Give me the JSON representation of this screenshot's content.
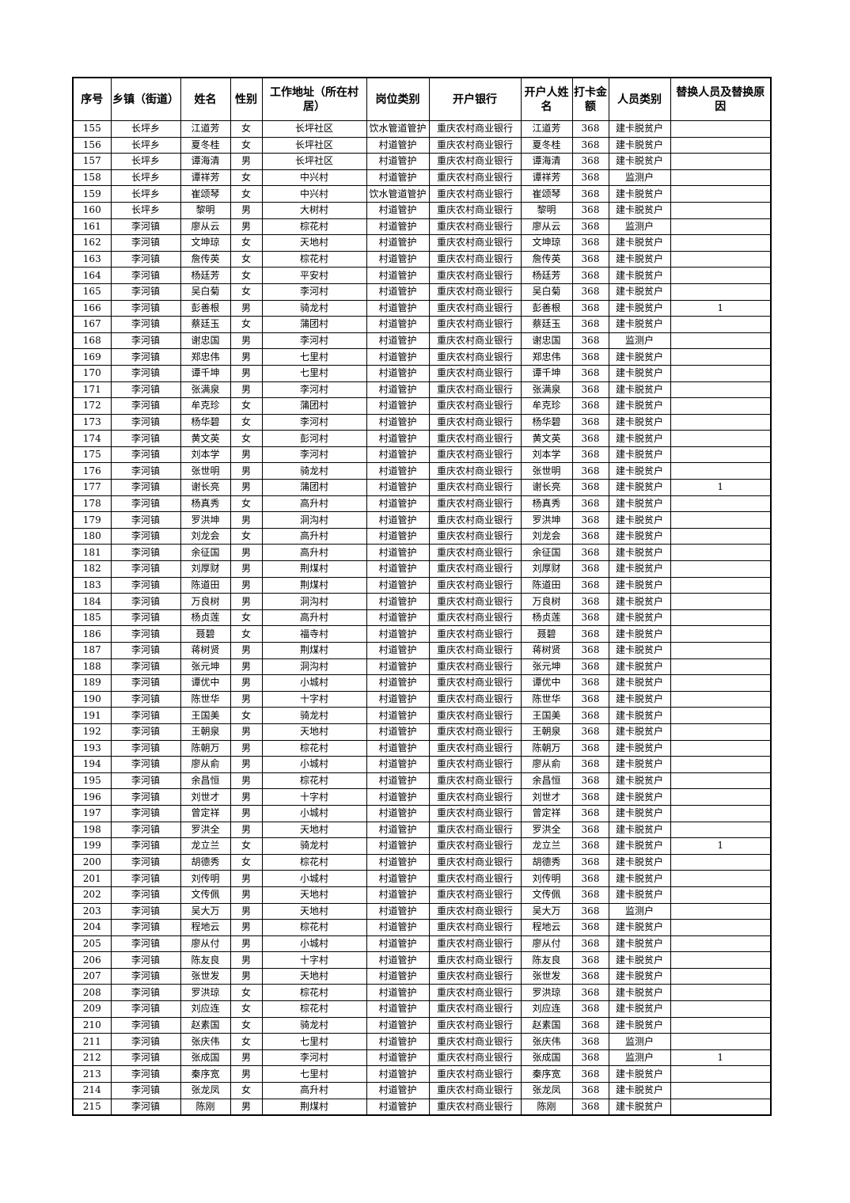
{
  "table": {
    "header": [
      "序号",
      "乡镇（街道）",
      "姓名",
      "性别",
      "工作地址（所在村居）",
      "岗位类别",
      "开户银行",
      "开户人姓名",
      "打卡金额",
      "人员类别",
      "替换人员及替换原因"
    ],
    "rows": [
      [
        155,
        "长坪乡",
        "江道芳",
        "女",
        "长坪社区",
        "饮水管道管护",
        "重庆农村商业银行",
        "江道芳",
        368,
        "建卡脱贫户"
      ],
      [
        156,
        "长坪乡",
        "夏冬桂",
        "女",
        "长坪社区",
        "村道管护",
        "重庆农村商业银行",
        "夏冬桂",
        368,
        "建卡脱贫户"
      ],
      [
        157,
        "长坪乡",
        "谭海清",
        "男",
        "长坪社区",
        "村道管护",
        "重庆农村商业银行",
        "谭海清",
        368,
        "建卡脱贫户"
      ],
      [
        158,
        "长坪乡",
        "谭祥芳",
        "女",
        "中兴村",
        "村道管护",
        "重庆农村商业银行",
        "谭祥芳",
        368,
        "监测户"
      ],
      [
        159,
        "长坪乡",
        "崔颂琴",
        "女",
        "中兴村",
        "饮水管道管护",
        "重庆农村商业银行",
        "崔颂琴",
        368,
        "建卡脱贫户"
      ],
      [
        160,
        "长坪乡",
        "黎明",
        "男",
        "大树村",
        "村道管护",
        "重庆农村商业银行",
        "黎明",
        368,
        "建卡脱贫户"
      ],
      [
        161,
        "李河镇",
        "廖从云",
        "男",
        "棕花村",
        "村道管护",
        "重庆农村商业银行",
        "廖从云",
        368,
        "监测户"
      ],
      [
        162,
        "李河镇",
        "文坤琼",
        "女",
        "天地村",
        "村道管护",
        "重庆农村商业银行",
        "文坤琼",
        368,
        "建卡脱贫户"
      ],
      [
        163,
        "李河镇",
        "詹传英",
        "女",
        "棕花村",
        "村道管护",
        "重庆农村商业银行",
        "詹传英",
        368,
        "建卡脱贫户"
      ],
      [
        164,
        "李河镇",
        "杨廷芳",
        "女",
        "平安村",
        "村道管护",
        "重庆农村商业银行",
        "杨廷芳",
        368,
        "建卡脱贫户"
      ],
      [
        165,
        "李河镇",
        "吴白菊",
        "女",
        "李河村",
        "村道管护",
        "重庆农村商业银行",
        "吴白菊",
        368,
        "建卡脱贫户"
      ],
      [
        166,
        "李河镇",
        "彭善根",
        "男",
        "骑龙村",
        "村道管护",
        "重庆农村商业银行",
        "彭善根",
        368,
        "建卡脱贫户",
        1
      ],
      [
        167,
        "李河镇",
        "蔡廷玉",
        "女",
        "蒲团村",
        "村道管护",
        "重庆农村商业银行",
        "蔡廷玉",
        368,
        "建卡脱贫户"
      ],
      [
        168,
        "李河镇",
        "谢忠国",
        "男",
        "李河村",
        "村道管护",
        "重庆农村商业银行",
        "谢忠国",
        368,
        "监测户"
      ],
      [
        169,
        "李河镇",
        "郑忠伟",
        "男",
        "七里村",
        "村道管护",
        "重庆农村商业银行",
        "郑忠伟",
        368,
        "建卡脱贫户"
      ],
      [
        170,
        "李河镇",
        "谭千坤",
        "男",
        "七里村",
        "村道管护",
        "重庆农村商业银行",
        "谭千坤",
        368,
        "建卡脱贫户"
      ],
      [
        171,
        "李河镇",
        "张满泉",
        "男",
        "李河村",
        "村道管护",
        "重庆农村商业银行",
        "张满泉",
        368,
        "建卡脱贫户"
      ],
      [
        172,
        "李河镇",
        "牟克珍",
        "女",
        "蒲团村",
        "村道管护",
        "重庆农村商业银行",
        "牟克珍",
        368,
        "建卡脱贫户"
      ],
      [
        173,
        "李河镇",
        "杨华碧",
        "女",
        "李河村",
        "村道管护",
        "重庆农村商业银行",
        "杨华碧",
        368,
        "建卡脱贫户"
      ],
      [
        174,
        "李河镇",
        "黄文英",
        "女",
        "彭河村",
        "村道管护",
        "重庆农村商业银行",
        "黄文英",
        368,
        "建卡脱贫户"
      ],
      [
        175,
        "李河镇",
        "刘本学",
        "男",
        "李河村",
        "村道管护",
        "重庆农村商业银行",
        "刘本学",
        368,
        "建卡脱贫户"
      ],
      [
        176,
        "李河镇",
        "张世明",
        "男",
        "骑龙村",
        "村道管护",
        "重庆农村商业银行",
        "张世明",
        368,
        "建卡脱贫户"
      ],
      [
        177,
        "李河镇",
        "谢长亮",
        "男",
        "蒲团村",
        "村道管护",
        "重庆农村商业银行",
        "谢长亮",
        368,
        "建卡脱贫户",
        1
      ],
      [
        178,
        "李河镇",
        "杨真秀",
        "女",
        "高升村",
        "村道管护",
        "重庆农村商业银行",
        "杨真秀",
        368,
        "建卡脱贫户"
      ],
      [
        179,
        "李河镇",
        "罗洪坤",
        "男",
        "洞沟村",
        "村道管护",
        "重庆农村商业银行",
        "罗洪坤",
        368,
        "建卡脱贫户"
      ],
      [
        180,
        "李河镇",
        "刘龙会",
        "女",
        "高升村",
        "村道管护",
        "重庆农村商业银行",
        "刘龙会",
        368,
        "建卡脱贫户"
      ],
      [
        181,
        "李河镇",
        "余征国",
        "男",
        "高升村",
        "村道管护",
        "重庆农村商业银行",
        "余征国",
        368,
        "建卡脱贫户"
      ],
      [
        182,
        "李河镇",
        "刘厚财",
        "男",
        "荆煤村",
        "村道管护",
        "重庆农村商业银行",
        "刘厚财",
        368,
        "建卡脱贫户"
      ],
      [
        183,
        "李河镇",
        "陈道田",
        "男",
        "荆煤村",
        "村道管护",
        "重庆农村商业银行",
        "陈道田",
        368,
        "建卡脱贫户"
      ],
      [
        184,
        "李河镇",
        "万良树",
        "男",
        "洞沟村",
        "村道管护",
        "重庆农村商业银行",
        "万良树",
        368,
        "建卡脱贫户"
      ],
      [
        185,
        "李河镇",
        "杨贞莲",
        "女",
        "高升村",
        "村道管护",
        "重庆农村商业银行",
        "杨贞莲",
        368,
        "建卡脱贫户"
      ],
      [
        186,
        "李河镇",
        "聂碧",
        "女",
        "福寺村",
        "村道管护",
        "重庆农村商业银行",
        "聂碧",
        368,
        "建卡脱贫户"
      ],
      [
        187,
        "李河镇",
        "蒋树贤",
        "男",
        "荆煤村",
        "村道管护",
        "重庆农村商业银行",
        "蒋树贤",
        368,
        "建卡脱贫户"
      ],
      [
        188,
        "李河镇",
        "张元坤",
        "男",
        "洞沟村",
        "村道管护",
        "重庆农村商业银行",
        "张元坤",
        368,
        "建卡脱贫户"
      ],
      [
        189,
        "李河镇",
        "谭优中",
        "男",
        "小城村",
        "村道管护",
        "重庆农村商业银行",
        "谭优中",
        368,
        "建卡脱贫户"
      ],
      [
        190,
        "李河镇",
        "陈世华",
        "男",
        "十字村",
        "村道管护",
        "重庆农村商业银行",
        "陈世华",
        368,
        "建卡脱贫户"
      ],
      [
        191,
        "李河镇",
        "王国美",
        "女",
        "骑龙村",
        "村道管护",
        "重庆农村商业银行",
        "王国美",
        368,
        "建卡脱贫户"
      ],
      [
        192,
        "李河镇",
        "王朝泉",
        "男",
        "天地村",
        "村道管护",
        "重庆农村商业银行",
        "王朝泉",
        368,
        "建卡脱贫户"
      ],
      [
        193,
        "李河镇",
        "陈朝万",
        "男",
        "棕花村",
        "村道管护",
        "重庆农村商业银行",
        "陈朝万",
        368,
        "建卡脱贫户"
      ],
      [
        194,
        "李河镇",
        "廖从俞",
        "男",
        "小城村",
        "村道管护",
        "重庆农村商业银行",
        "廖从俞",
        368,
        "建卡脱贫户"
      ],
      [
        195,
        "李河镇",
        "余昌恒",
        "男",
        "棕花村",
        "村道管护",
        "重庆农村商业银行",
        "余昌恒",
        368,
        "建卡脱贫户"
      ],
      [
        196,
        "李河镇",
        "刘世才",
        "男",
        "十字村",
        "村道管护",
        "重庆农村商业银行",
        "刘世才",
        368,
        "建卡脱贫户"
      ],
      [
        197,
        "李河镇",
        "曾定祥",
        "男",
        "小城村",
        "村道管护",
        "重庆农村商业银行",
        "曾定祥",
        368,
        "建卡脱贫户"
      ],
      [
        198,
        "李河镇",
        "罗洪全",
        "男",
        "天地村",
        "村道管护",
        "重庆农村商业银行",
        "罗洪全",
        368,
        "建卡脱贫户"
      ],
      [
        199,
        "李河镇",
        "龙立兰",
        "女",
        "骑龙村",
        "村道管护",
        "重庆农村商业银行",
        "龙立兰",
        368,
        "建卡脱贫户",
        1
      ],
      [
        200,
        "李河镇",
        "胡德秀",
        "女",
        "棕花村",
        "村道管护",
        "重庆农村商业银行",
        "胡德秀",
        368,
        "建卡脱贫户"
      ],
      [
        201,
        "李河镇",
        "刘传明",
        "男",
        "小城村",
        "村道管护",
        "重庆农村商业银行",
        "刘传明",
        368,
        "建卡脱贫户"
      ],
      [
        202,
        "李河镇",
        "文传佩",
        "男",
        "天地村",
        "村道管护",
        "重庆农村商业银行",
        "文传佩",
        368,
        "建卡脱贫户"
      ],
      [
        203,
        "李河镇",
        "吴大万",
        "男",
        "天地村",
        "村道管护",
        "重庆农村商业银行",
        "吴大万",
        368,
        "监测户"
      ],
      [
        204,
        "李河镇",
        "程地云",
        "男",
        "棕花村",
        "村道管护",
        "重庆农村商业银行",
        "程地云",
        368,
        "建卡脱贫户"
      ],
      [
        205,
        "李河镇",
        "廖从付",
        "男",
        "小城村",
        "村道管护",
        "重庆农村商业银行",
        "廖从付",
        368,
        "建卡脱贫户"
      ],
      [
        206,
        "李河镇",
        "陈友良",
        "男",
        "十字村",
        "村道管护",
        "重庆农村商业银行",
        "陈友良",
        368,
        "建卡脱贫户"
      ],
      [
        207,
        "李河镇",
        "张世发",
        "男",
        "天地村",
        "村道管护",
        "重庆农村商业银行",
        "张世发",
        368,
        "建卡脱贫户"
      ],
      [
        208,
        "李河镇",
        "罗洪琼",
        "女",
        "棕花村",
        "村道管护",
        "重庆农村商业银行",
        "罗洪琼",
        368,
        "建卡脱贫户"
      ],
      [
        209,
        "李河镇",
        "刘应连",
        "女",
        "棕花村",
        "村道管护",
        "重庆农村商业银行",
        "刘应连",
        368,
        "建卡脱贫户"
      ],
      [
        210,
        "李河镇",
        "赵素国",
        "女",
        "骑龙村",
        "村道管护",
        "重庆农村商业银行",
        "赵素国",
        368,
        "建卡脱贫户"
      ],
      [
        211,
        "李河镇",
        "张庆伟",
        "女",
        "七里村",
        "村道管护",
        "重庆农村商业银行",
        "张庆伟",
        368,
        "监测户"
      ],
      [
        212,
        "李河镇",
        "张成国",
        "男",
        "李河村",
        "村道管护",
        "重庆农村商业银行",
        "张成国",
        368,
        "监测户",
        1
      ],
      [
        213,
        "李河镇",
        "秦序宽",
        "男",
        "七里村",
        "村道管护",
        "重庆农村商业银行",
        "秦序宽",
        368,
        "建卡脱贫户"
      ],
      [
        214,
        "李河镇",
        "张龙凤",
        "女",
        "高升村",
        "村道管护",
        "重庆农村商业银行",
        "张龙凤",
        368,
        "建卡脱贫户"
      ],
      [
        215,
        "李河镇",
        "陈刚",
        "男",
        "荆煤村",
        "村道管护",
        "重庆农村商业银行",
        "陈刚",
        368,
        "建卡脱贫户"
      ]
    ]
  }
}
